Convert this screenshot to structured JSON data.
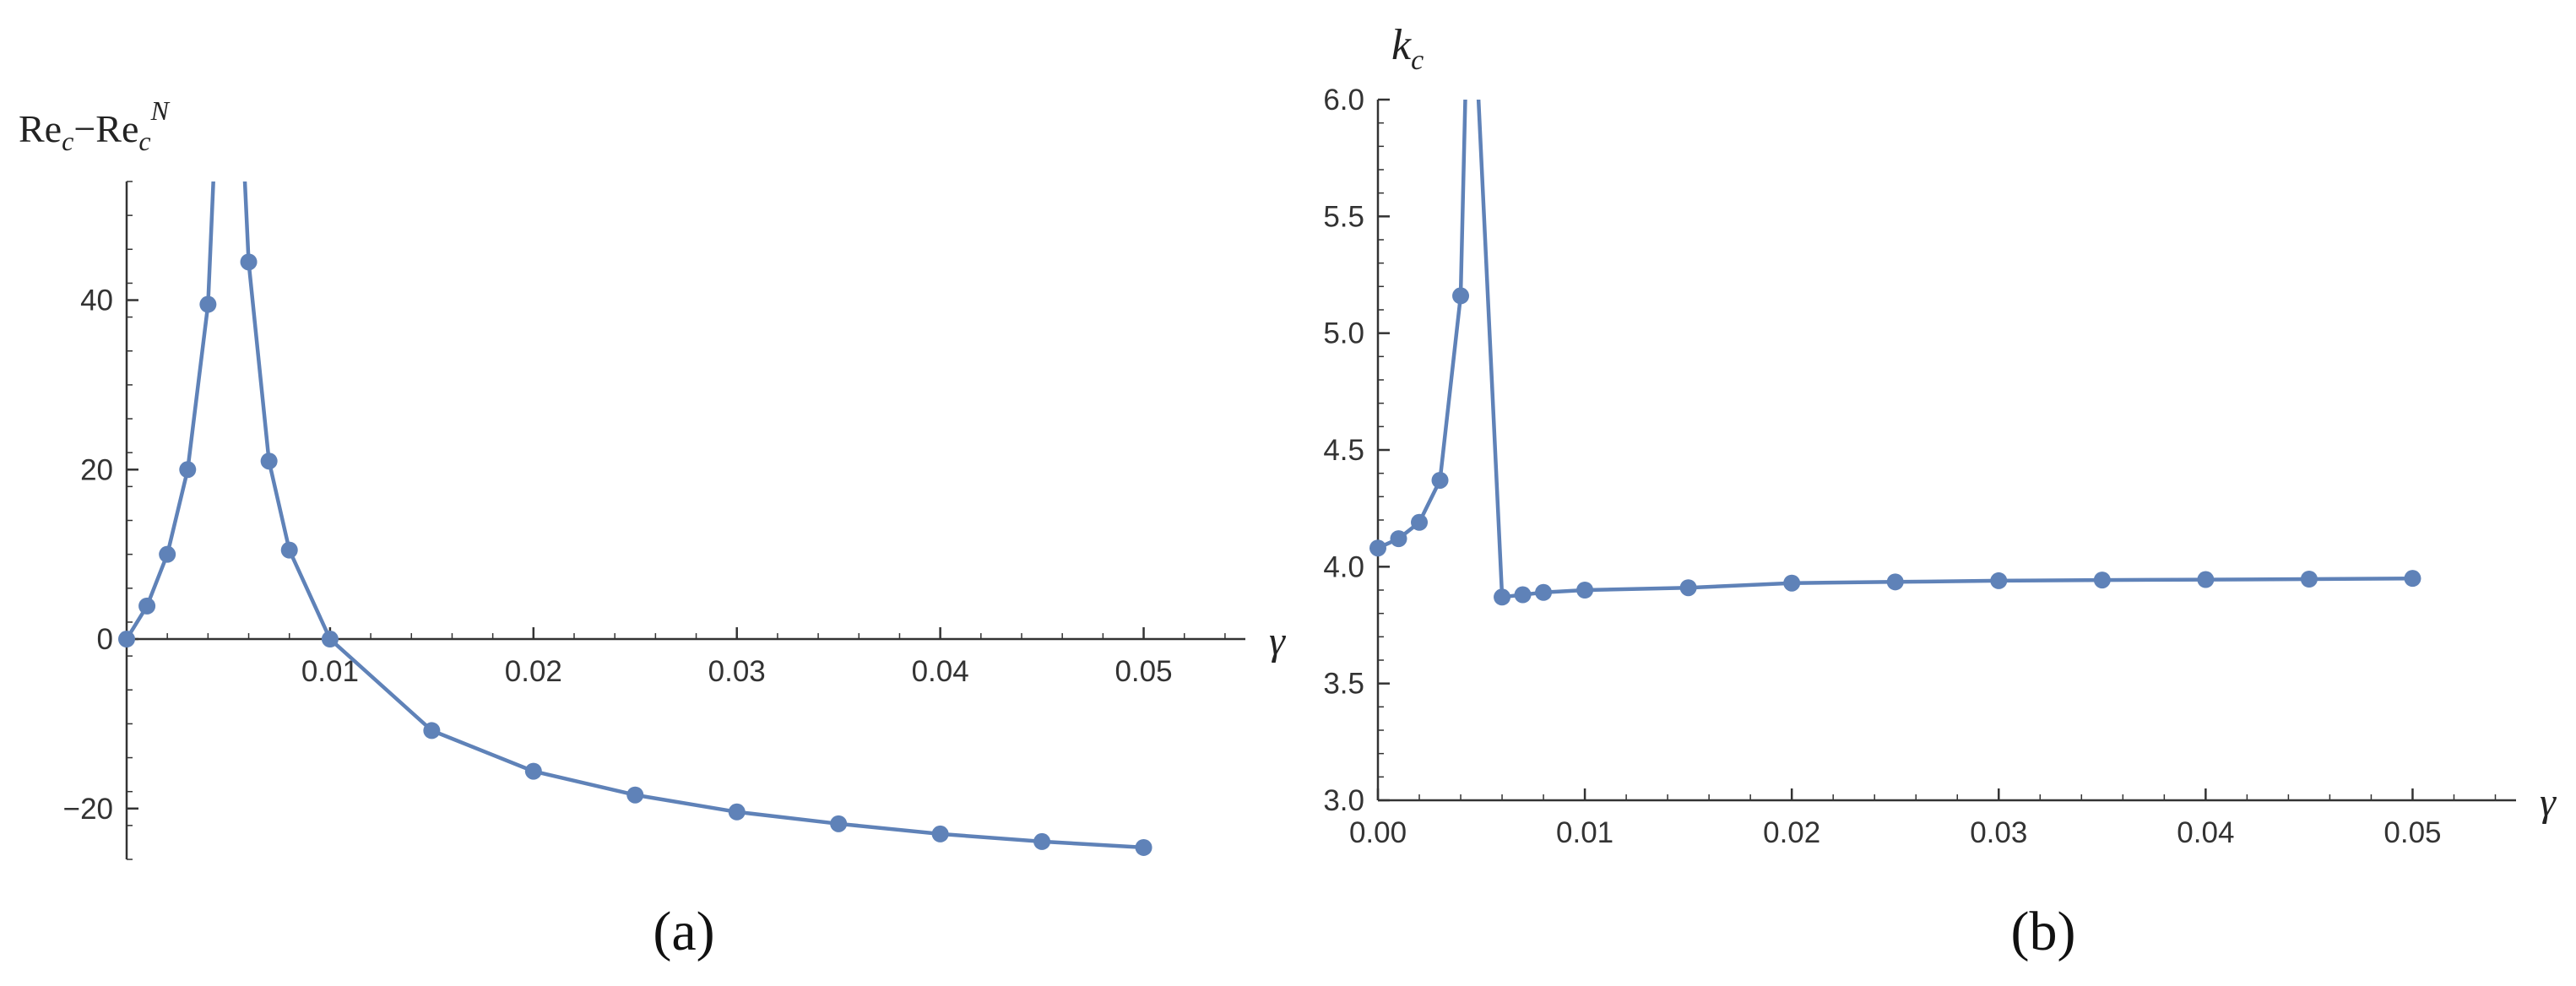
{
  "colors": {
    "series": "#5f82b8",
    "axis": "#333333",
    "text": "#222222"
  },
  "chart_data": [
    {
      "type": "line",
      "panel_label": "(a)",
      "xlabel": "γ",
      "ylabel": {
        "base": "Re",
        "sub": "c",
        "minus": "−",
        "base2": "Re",
        "sub2": "c",
        "sup2": "N"
      },
      "xlim": [
        0,
        0.055
      ],
      "ylim": [
        -26,
        54
      ],
      "xticks": [
        0.01,
        0.02,
        0.03,
        0.04,
        0.05
      ],
      "xtick_labels": [
        "0.01",
        "0.02",
        "0.03",
        "0.04",
        "0.05"
      ],
      "yticks": [
        -20,
        0,
        20,
        40
      ],
      "ytick_labels": [
        "−20",
        "0",
        "20",
        "40"
      ],
      "points": {
        "x": [
          0,
          0.001,
          0.002,
          0.003,
          0.004,
          0.006,
          0.007,
          0.008,
          0.01,
          0.015,
          0.02,
          0.025,
          0.03,
          0.035,
          0.04,
          0.045,
          0.05
        ],
        "y": [
          0,
          3.9,
          10.0,
          20.0,
          39.5,
          44.5,
          21.0,
          10.5,
          0,
          -10.8,
          -15.6,
          -18.4,
          -20.4,
          -21.8,
          -23.0,
          -23.9,
          -24.6
        ]
      }
    },
    {
      "type": "line",
      "panel_label": "(b)",
      "xlabel": "γ",
      "ylabel": {
        "base": "k",
        "sub": "c"
      },
      "xlim": [
        0,
        0.055
      ],
      "ylim": [
        3.0,
        6.0
      ],
      "xticks": [
        0,
        0.01,
        0.02,
        0.03,
        0.04,
        0.05
      ],
      "xtick_labels": [
        "0.00",
        "0.01",
        "0.02",
        "0.03",
        "0.04",
        "0.05"
      ],
      "yticks": [
        3.0,
        3.5,
        4.0,
        4.5,
        5.0,
        5.5,
        6.0
      ],
      "ytick_labels": [
        "3.0",
        "3.5",
        "4.0",
        "4.5",
        "5.0",
        "5.5",
        "6.0"
      ],
      "points": {
        "x": [
          0,
          0.001,
          0.002,
          0.003,
          0.004,
          0.006,
          0.007,
          0.008,
          0.01,
          0.015,
          0.02,
          0.025,
          0.03,
          0.035,
          0.04,
          0.045,
          0.05
        ],
        "y": [
          4.08,
          4.12,
          4.19,
          4.37,
          5.16,
          3.87,
          3.88,
          3.89,
          3.9,
          3.91,
          3.93,
          3.935,
          3.94,
          3.943,
          3.945,
          3.947,
          3.95
        ]
      }
    }
  ]
}
